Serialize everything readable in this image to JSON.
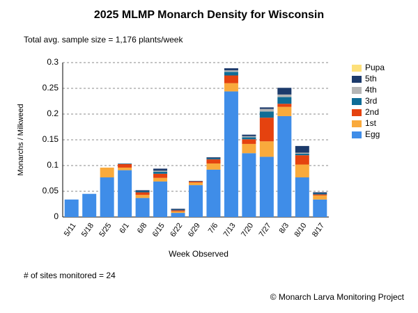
{
  "chart_data": {
    "type": "stacked_bar",
    "title": "2025 MLMP Monarch Density for Wisconsin",
    "subtitle": "Total avg. sample size = 1,176 plants/week",
    "y_label": "Monarchs / Milkweed",
    "x_label": "Week Observed",
    "footnote": "# of sites monitored = 24",
    "credit": "© Monarch Larva Monitoring Project",
    "categories": [
      "5/11",
      "5/18",
      "5/25",
      "6/1",
      "6/8",
      "6/15",
      "6/22",
      "6/29",
      "7/6",
      "7/13",
      "7/20",
      "7/27",
      "8/3",
      "8/10",
      "8/17"
    ],
    "series": [
      {
        "name": "Egg",
        "color": "#3f8de8",
        "values": [
          0.034,
          0.045,
          0.077,
          0.091,
          0.037,
          0.069,
          0.008,
          0.062,
          0.092,
          0.244,
          0.124,
          0.117,
          0.196,
          0.077,
          0.034
        ]
      },
      {
        "name": "1st",
        "color": "#f9aa3c",
        "values": [
          0,
          0,
          0.019,
          0.005,
          0.006,
          0.007,
          0.003,
          0.005,
          0.012,
          0.016,
          0.018,
          0.03,
          0.018,
          0.025,
          0.008
        ]
      },
      {
        "name": "2nd",
        "color": "#e5420f",
        "values": [
          0,
          0,
          0,
          0.007,
          0.005,
          0.008,
          0.002,
          0.002,
          0.008,
          0.015,
          0.009,
          0.046,
          0.006,
          0.018,
          0.002
        ]
      },
      {
        "name": "3rd",
        "color": "#0f6c96",
        "values": [
          0,
          0,
          0,
          0.001,
          0.002,
          0.004,
          0.001,
          0,
          0.002,
          0.007,
          0.004,
          0.012,
          0.013,
          0.003,
          0.002
        ]
      },
      {
        "name": "4th",
        "color": "#b5b5b5",
        "values": [
          0,
          0,
          0,
          0,
          0,
          0.002,
          0,
          0,
          0,
          0.003,
          0.002,
          0.005,
          0.005,
          0.002,
          0
        ]
      },
      {
        "name": "5th",
        "color": "#1c3a6b",
        "values": [
          0,
          0,
          0,
          0,
          0.002,
          0.004,
          0.002,
          0.001,
          0.002,
          0.004,
          0.003,
          0.003,
          0.013,
          0.013,
          0.002
        ]
      },
      {
        "name": "Pupa",
        "color": "#fde07a",
        "values": [
          0,
          0,
          0,
          0,
          0,
          0,
          0,
          0,
          0,
          0,
          0,
          0,
          0,
          0,
          0
        ]
      }
    ],
    "ylim": [
      0,
      0.3
    ],
    "yticks": [
      0,
      0.05,
      0.1,
      0.15,
      0.2,
      0.25,
      0.3
    ],
    "grid": true
  }
}
